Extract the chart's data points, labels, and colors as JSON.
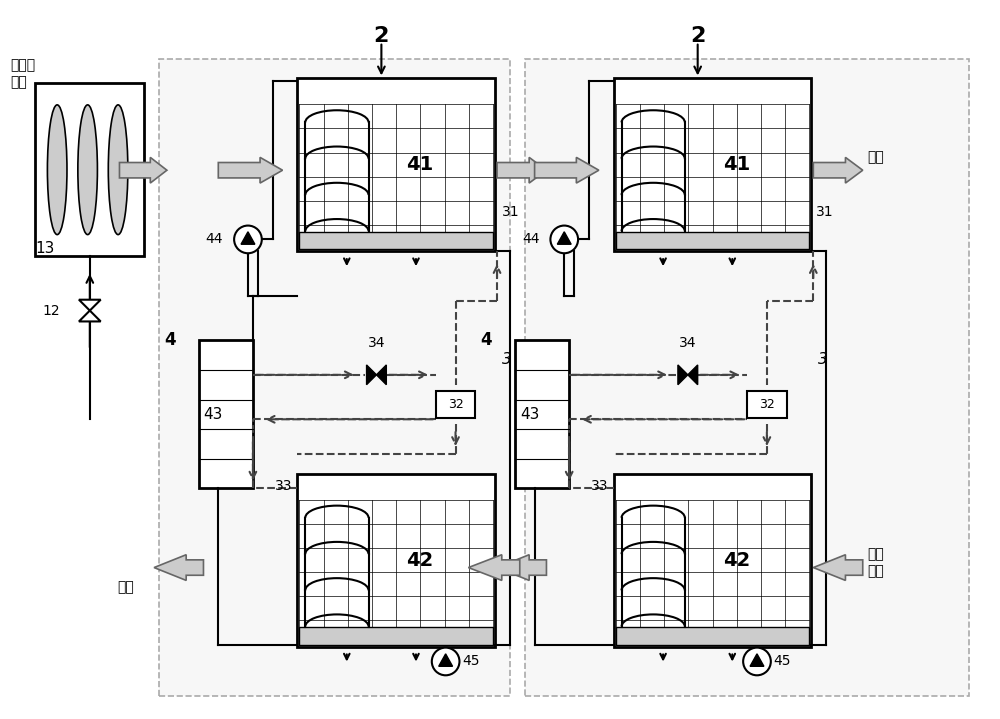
{
  "bg_color": "#ffffff",
  "border_color": "#bbbbbb",
  "line_color": "#222222",
  "dashed_color": "#444444",
  "gray_arrow": "#aaaaaa",
  "labels": {
    "chinese_air_in": "待处理\n空气",
    "chinese_exhaust": "排风",
    "chinese_supply": "送风",
    "chinese_regen_line1": "再生",
    "chinese_regen_line2": "空气"
  }
}
